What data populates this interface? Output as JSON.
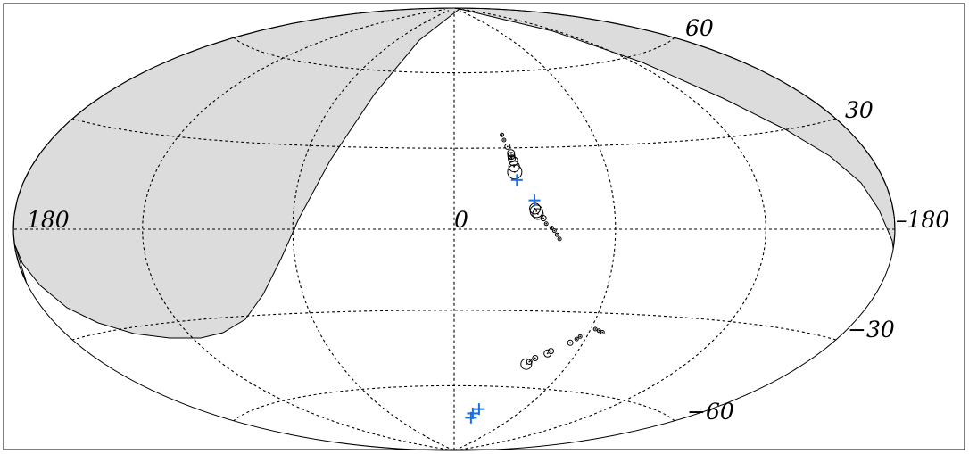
{
  "chart_data": {
    "type": "scatter",
    "projection": "aitoff-hammer",
    "title": "",
    "xlabel": "",
    "ylabel": "",
    "longitude_range": [
      -180,
      180
    ],
    "latitude_range": [
      -90,
      90
    ],
    "grid": true,
    "graticule_longitudes": [
      -120,
      -60,
      0,
      60,
      120
    ],
    "graticule_latitudes": [
      -60,
      -30,
      0,
      30,
      60
    ],
    "labels": {
      "lon_0": "0",
      "lon_left": "180",
      "lon_right": "–180",
      "lat_60": "60",
      "lat_30": "30",
      "lat_m30": "−30",
      "lat_m60": "−60"
    },
    "colors": {
      "shaded_region": "#dcdcdc",
      "circles": "#000000",
      "crosses": "#1a6fe0",
      "grid": "#000000"
    },
    "series": [
      {
        "marker": "circle",
        "points": [
          {
            "lon": -20.5,
            "lat": 35,
            "size": 2
          },
          {
            "lon": -21,
            "lat": 33,
            "size": 2
          },
          {
            "lon": -22,
            "lat": 30.5,
            "size": 3
          },
          {
            "lon": -23,
            "lat": 28,
            "size": 4
          },
          {
            "lon": -23,
            "lat": 27,
            "size": 4
          },
          {
            "lon": -23,
            "lat": 26,
            "size": 4
          },
          {
            "lon": -23.5,
            "lat": 25,
            "size": 5
          },
          {
            "lon": -23.5,
            "lat": 23,
            "size": 6
          },
          {
            "lon": -23.5,
            "lat": 21,
            "size": 8
          },
          {
            "lon": -30,
            "lat": 7.5,
            "size": 6
          },
          {
            "lon": -30.5,
            "lat": 6.5,
            "size": 7
          },
          {
            "lon": -31,
            "lat": 5.5,
            "size": 6
          },
          {
            "lon": -33,
            "lat": 4,
            "size": 3
          },
          {
            "lon": -34,
            "lat": 2,
            "size": 2
          },
          {
            "lon": -36,
            "lat": 0.5,
            "size": 2
          },
          {
            "lon": -37,
            "lat": -0.5,
            "size": 2
          },
          {
            "lon": -38,
            "lat": -2,
            "size": 2
          },
          {
            "lon": -39,
            "lat": -3.5,
            "size": 2
          },
          {
            "lon": -62,
            "lat": -36,
            "size": 2
          },
          {
            "lon": -64,
            "lat": -36.5,
            "size": 2
          },
          {
            "lon": -66,
            "lat": -37,
            "size": 2
          },
          {
            "lon": -57,
            "lat": -39,
            "size": 2
          },
          {
            "lon": -56,
            "lat": -40,
            "size": 2
          },
          {
            "lon": -54,
            "lat": -41.5,
            "size": 3
          },
          {
            "lon": -47,
            "lat": -45,
            "size": 3
          },
          {
            "lon": -46,
            "lat": -46,
            "size": 4
          },
          {
            "lon": -41,
            "lat": -48,
            "size": 3
          },
          {
            "lon": -39,
            "lat": -49.5,
            "size": 3
          },
          {
            "lon": -38,
            "lat": -50.5,
            "size": 6
          }
        ]
      },
      {
        "marker": "cross",
        "points": [
          {
            "lon": -24,
            "lat": 18
          },
          {
            "lon": -30,
            "lat": 10.5
          },
          {
            "lon": -22,
            "lat": -70
          },
          {
            "lon": -18,
            "lat": -72
          },
          {
            "lon": -18,
            "lat": -74
          }
        ]
      }
    ]
  }
}
